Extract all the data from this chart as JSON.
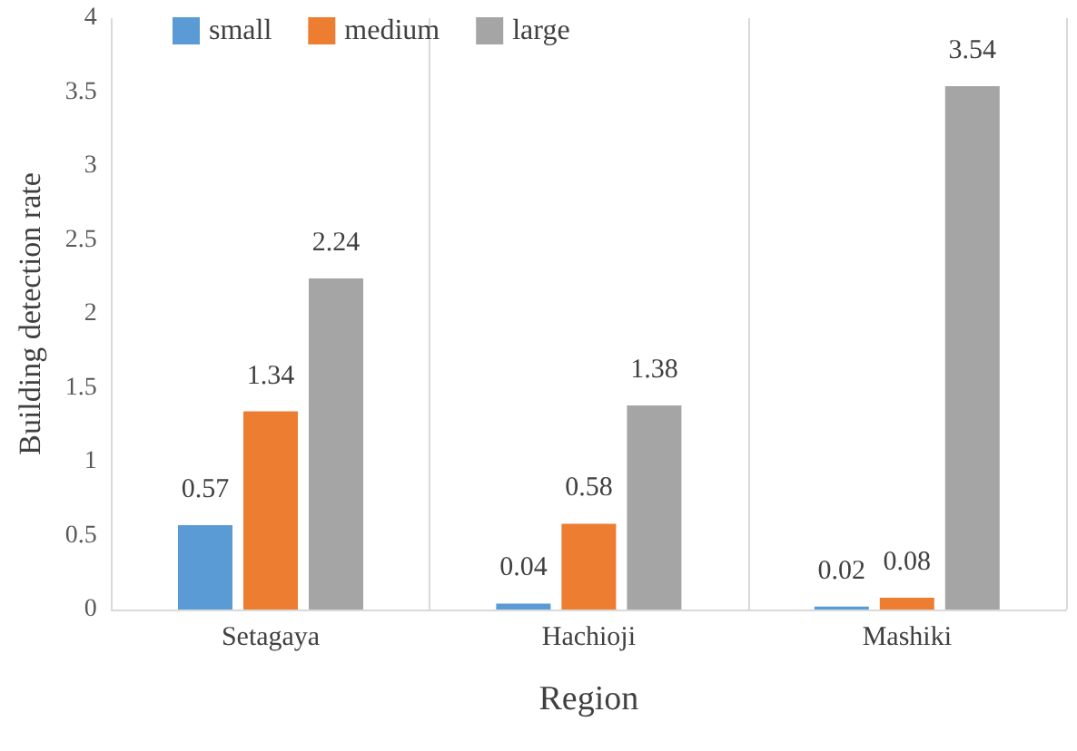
{
  "chart_data": {
    "type": "bar",
    "xlabel": "Region",
    "ylabel": "Building detection rate",
    "categories": [
      "Setagaya",
      "Hachioji",
      "Mashiki"
    ],
    "series": [
      {
        "name": "small",
        "color": "#5b9bd5",
        "values": [
          0.57,
          0.04,
          0.02
        ]
      },
      {
        "name": "medium",
        "color": "#ed7d31",
        "values": [
          1.34,
          0.58,
          0.08
        ]
      },
      {
        "name": "large",
        "color": "#a5a5a5",
        "values": [
          2.24,
          1.38,
          3.54
        ]
      }
    ],
    "ylim": [
      0,
      4
    ],
    "yticks": [
      0,
      0.5,
      1,
      1.5,
      2,
      2.5,
      3,
      3.5,
      4
    ],
    "grid": "x",
    "legend": "top left",
    "data_labels": true
  }
}
